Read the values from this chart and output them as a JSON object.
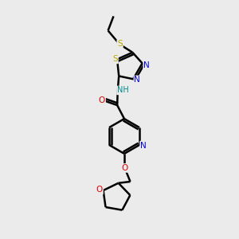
{
  "background_color": "#ebebeb",
  "atom_colors": {
    "C": "#000000",
    "N": "#0000ee",
    "O": "#dd0000",
    "S": "#bbaa00",
    "H": "#008888"
  },
  "bond_color": "#000000",
  "line_width": 1.8,
  "figsize": [
    3.0,
    3.0
  ],
  "dpi": 100
}
